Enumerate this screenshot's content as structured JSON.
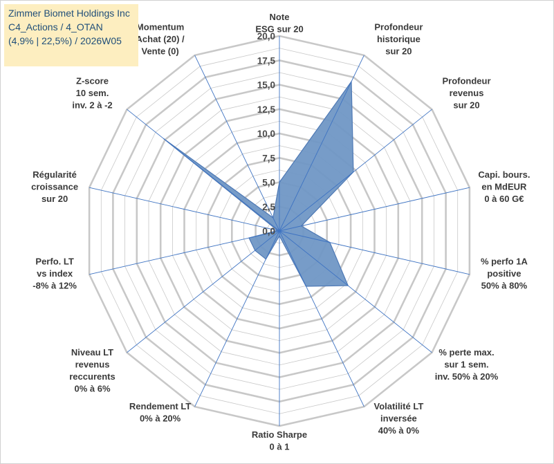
{
  "chart_data": {
    "type": "radar",
    "title_lines": [
      "Zimmer Biomet Holdings Inc",
      "C4_Actions / 4_OTAN",
      "(4,9% | 22,5%) / 2026W05"
    ],
    "rlim": [
      0,
      20
    ],
    "ticks": [
      "0,0",
      "2,5",
      "5,0",
      "7,5",
      "10,0",
      "12,5",
      "15,0",
      "17,5",
      "20,0"
    ],
    "tick_values": [
      0,
      2.5,
      5,
      7.5,
      10,
      12.5,
      15,
      17.5,
      20
    ],
    "grid_step": 1.25,
    "categories": [
      {
        "lines": [
          "Note",
          "ESG sur 20"
        ]
      },
      {
        "lines": [
          "Profondeur",
          "historique",
          "sur 20"
        ]
      },
      {
        "lines": [
          "Profondeur",
          "revenus",
          "sur 20"
        ]
      },
      {
        "lines": [
          "Capi. bours.",
          "en MdEUR",
          "0 à 60 G€"
        ]
      },
      {
        "lines": [
          "% perfo 1A",
          "positive",
          "50% à 80%"
        ]
      },
      {
        "lines": [
          "% perte max.",
          "sur 1 sem.",
          "inv. 50% à 20%"
        ]
      },
      {
        "lines": [
          "Volatilité LT",
          "inversée",
          "40% à 0%"
        ]
      },
      {
        "lines": [
          "Ratio Sharpe",
          "0 à 1"
        ]
      },
      {
        "lines": [
          "Rendement LT",
          "0% à 20%"
        ]
      },
      {
        "lines": [
          "Niveau LT",
          "revenus",
          "reccurents",
          "0% à 6%"
        ]
      },
      {
        "lines": [
          "Perfo. LT",
          "vs index",
          "-8% à 12%"
        ]
      },
      {
        "lines": [
          "Régularité",
          "croissance",
          "sur 20"
        ]
      },
      {
        "lines": [
          "Z-score",
          "10 sem.",
          "inv. 2 à -2"
        ]
      },
      {
        "lines": [
          "Momentum",
          "Achat (20) /",
          "Vente (0)"
        ]
      }
    ],
    "series": [
      {
        "name": "Zimmer Biomet Holdings Inc",
        "values": [
          5.0,
          17.0,
          9.7,
          2.3,
          5.3,
          9.0,
          6.3,
          0.5,
          3.2,
          3.2,
          3.2,
          0.2,
          15.2,
          1.5
        ]
      }
    ],
    "colors": {
      "fill": "#7097c5",
      "stroke": "#4e79b5",
      "grid": "#c8c8c8",
      "spoke": "#3e73c2",
      "title_bg": "#fdeec0",
      "title_text": "#1f4e79"
    }
  }
}
